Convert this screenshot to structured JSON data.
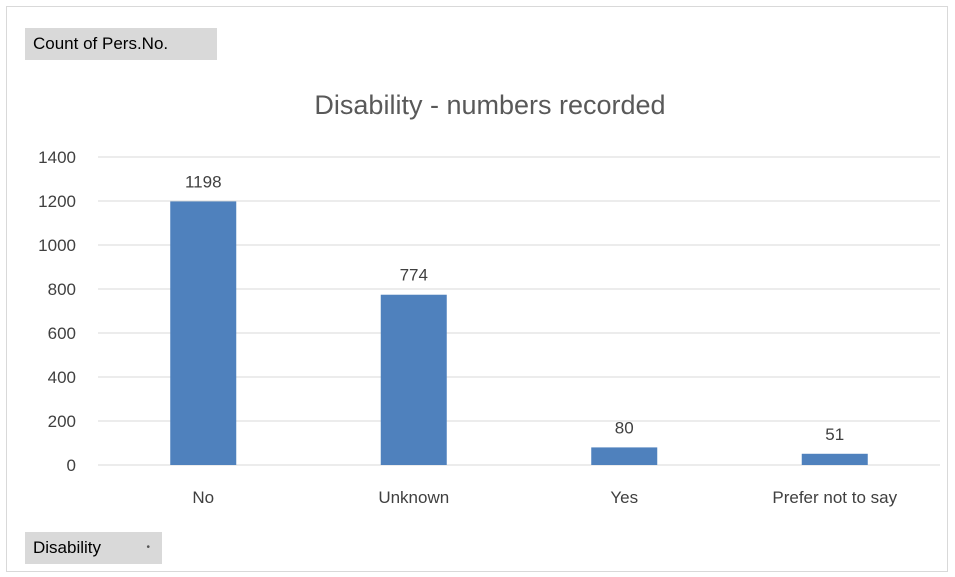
{
  "pivot": {
    "values_field_label": "Count of Pers.No.",
    "axis_field_label": "Disability",
    "axis_field_dropdown_icon": "dropdown-arrow-icon"
  },
  "chart_data": {
    "type": "bar",
    "title": "Disability - numbers recorded",
    "categories": [
      "No",
      "Unknown",
      "Yes",
      "Prefer not to say"
    ],
    "values": [
      1198,
      774,
      80,
      51
    ],
    "data_labels": [
      "1198",
      "774",
      "80",
      "51"
    ],
    "ylim": [
      0,
      1400
    ],
    "yticks": [
      0,
      200,
      400,
      600,
      800,
      1000,
      1200,
      1400
    ],
    "grid": true,
    "legend": "none",
    "bar_color": "#4f81bd",
    "gridline_color": "#d9d9d9"
  }
}
